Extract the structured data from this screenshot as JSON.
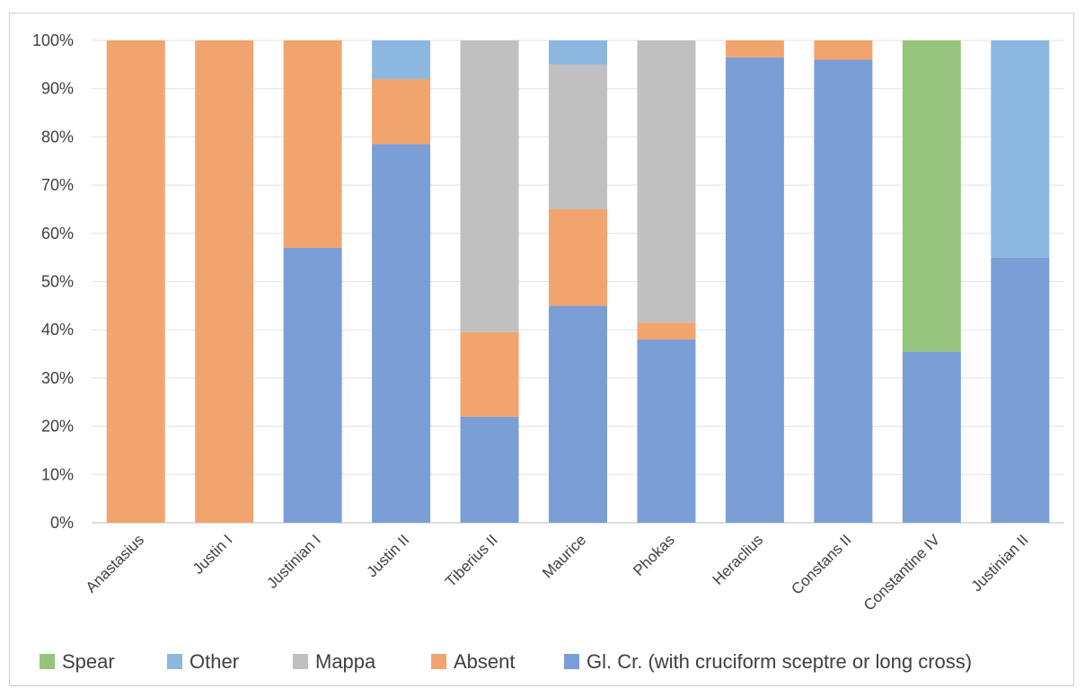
{
  "chart_data": {
    "type": "bar",
    "stacked": "percent",
    "title": "",
    "xlabel": "",
    "ylabel": "",
    "ylim": [
      0,
      100
    ],
    "y_ticks": [
      "0%",
      "10%",
      "20%",
      "30%",
      "40%",
      "50%",
      "60%",
      "70%",
      "80%",
      "90%",
      "100%"
    ],
    "grid": true,
    "legend_position": "bottom",
    "categories": [
      "Anastasius",
      "Justin I",
      "Justinian I",
      "Justin II",
      "Tiberius II",
      "Maurice",
      "Phokas",
      "Heraclius",
      "Constans II",
      "Constantine IV",
      "Justinian II"
    ],
    "series": [
      {
        "name": "Gl. Cr. (with cruciform sceptre or long cross)",
        "color": "#7b9ed6",
        "values": [
          0,
          0,
          57,
          78.5,
          22,
          45,
          38,
          96.5,
          96,
          35.5,
          55
        ]
      },
      {
        "name": "Absent",
        "color": "#f2a46f",
        "values": [
          100,
          100,
          43,
          13.5,
          17.5,
          20,
          3.5,
          3.5,
          4,
          0,
          0
        ]
      },
      {
        "name": "Mappa",
        "color": "#c0c0c0",
        "values": [
          0,
          0,
          0,
          0,
          60.5,
          30,
          58.5,
          0,
          0,
          0,
          0
        ]
      },
      {
        "name": "Other",
        "color": "#8cb8e0",
        "values": [
          0,
          0,
          0,
          8,
          0,
          5,
          0,
          0,
          0,
          0,
          45
        ]
      },
      {
        "name": "Spear",
        "color": "#97c47c",
        "values": [
          0,
          0,
          0,
          0,
          0,
          0,
          0,
          0,
          0,
          64.5,
          0
        ]
      }
    ],
    "legend_order": [
      "Spear",
      "Other",
      "Mappa",
      "Absent",
      "Gl. Cr. (with cruciform sceptre or long cross)"
    ]
  }
}
